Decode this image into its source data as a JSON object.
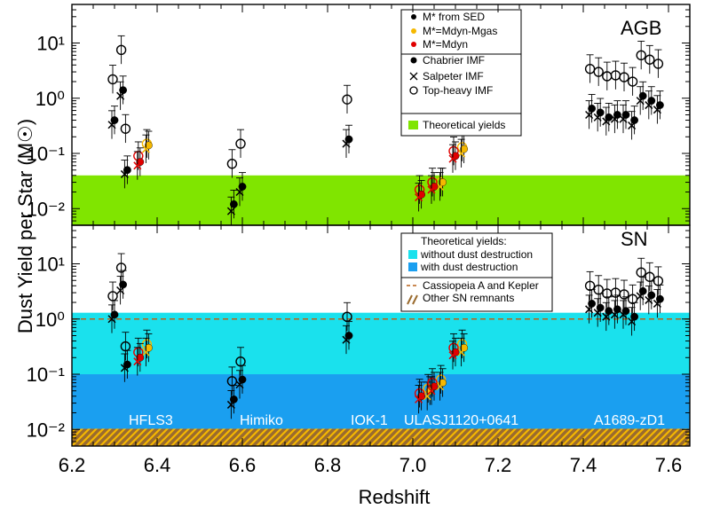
{
  "chart_data": [
    {
      "panel": "AGB",
      "type": "scatter",
      "label": "AGB",
      "ylabel": "Dust Yield per Star (M☉)",
      "yscale": "log",
      "ylim": [
        0.005,
        50
      ],
      "xlim": [
        6.2,
        7.65
      ],
      "y_tick_labels": [
        "10⁻²",
        "10⁻¹",
        "10⁰",
        "10¹"
      ],
      "legend": {
        "position": "top-right",
        "groups": [
          [
            "M* from SED",
            "M*=Mdyn-Mgas",
            "M*=Mdyn"
          ],
          [
            "Chabrier IMF",
            "Salpeter IMF",
            "Top-heavy IMF"
          ],
          [
            "Theoretical yields"
          ]
        ]
      },
      "bands": [
        {
          "name": "Theoretical yields",
          "range": [
            0.005,
            0.04
          ],
          "color": "#80e500"
        }
      ],
      "series": [
        {
          "name": "M* from SED",
          "color": "#000000",
          "x": [
            6.3,
            6.32,
            6.33,
            6.58,
            6.6,
            6.85,
            7.42,
            7.44,
            7.46,
            7.48,
            7.5,
            7.52,
            7.54,
            7.56,
            7.58
          ],
          "chabrier": [
            0.4,
            1.4,
            0.05,
            0.012,
            0.025,
            0.18,
            0.65,
            0.55,
            0.45,
            0.5,
            0.5,
            0.4,
            1.1,
            0.9,
            0.75
          ],
          "salpeter": [
            0.33,
            1.1,
            0.042,
            0.009,
            0.02,
            0.15,
            0.5,
            0.45,
            0.38,
            0.42,
            0.42,
            0.32,
            0.9,
            0.75,
            0.62
          ],
          "top_heavy": [
            2.2,
            7.5,
            0.28,
            0.065,
            0.15,
            0.95,
            3.4,
            3.0,
            2.5,
            2.6,
            2.4,
            2.0,
            6.0,
            5.0,
            4.2
          ]
        },
        {
          "name": "M*=Mdyn-Mgas",
          "color": "#f5b800",
          "x": [
            6.38,
            7.07,
            7.12
          ],
          "chabrier": [
            0.14,
            0.03,
            0.12
          ],
          "salpeter": [
            0.12,
            0.025,
            0.1
          ],
          "top_heavy": [
            0.15,
            0.03,
            0.13
          ]
        },
        {
          "name": "M*=Mdyn",
          "color": "#e00000",
          "x": [
            6.36,
            7.02,
            7.05,
            7.1
          ],
          "chabrier": [
            0.07,
            0.018,
            0.025,
            0.09
          ],
          "salpeter": [
            0.06,
            0.016,
            0.022,
            0.08
          ],
          "top_heavy": [
            0.09,
            0.022,
            0.03,
            0.11
          ]
        }
      ]
    },
    {
      "panel": "SN",
      "type": "scatter",
      "label": "SN",
      "xlabel": "Redshift",
      "yscale": "log",
      "ylim": [
        0.005,
        50
      ],
      "xlim": [
        6.2,
        7.65
      ],
      "x_tick_labels": [
        "6.2",
        "6.4",
        "6.6",
        "6.8",
        "7.0",
        "7.2",
        "7.4",
        "7.6"
      ],
      "y_tick_labels": [
        "10⁻²",
        "10⁻¹",
        "10⁰",
        "10¹"
      ],
      "legend": {
        "position": "top-right",
        "title": "Theoretical yields:",
        "items": [
          "without dust destruction",
          "with dust destruction",
          "Cassiopeia A and Kepler",
          "Other SN remnants"
        ]
      },
      "bands": [
        {
          "name": "without dust destruction",
          "range": [
            0.1,
            1.3
          ],
          "color": "#1ae1ed"
        },
        {
          "name": "with dust destruction",
          "range": [
            0.0103,
            0.1
          ],
          "color": "#1a9ff0"
        },
        {
          "name": "Other SN remnants",
          "range": [
            0.005,
            0.0103
          ],
          "color": "#9a6b2e",
          "hatched": true
        }
      ],
      "reference_line": {
        "name": "Cassiopeia A and Kepler",
        "y": 1.0,
        "color": "#b8621a",
        "style": "dashed"
      },
      "galaxy_labels": [
        {
          "text": "HFLS3",
          "x": 6.32
        },
        {
          "text": "Himiko",
          "x": 6.595
        },
        {
          "text": "IOK-1",
          "x": 6.85
        },
        {
          "text": "ULASJ1120+0641",
          "x": 7.085
        },
        {
          "text": "A1689-zD1",
          "x": 7.5
        }
      ],
      "series": [
        {
          "name": "M* from SED",
          "color": "#000000",
          "x": [
            6.3,
            6.32,
            6.33,
            6.58,
            6.6,
            6.85,
            7.42,
            7.44,
            7.46,
            7.48,
            7.5,
            7.52,
            7.54,
            7.56,
            7.58
          ],
          "chabrier": [
            1.2,
            4.2,
            0.15,
            0.035,
            0.08,
            0.5,
            1.9,
            1.6,
            1.4,
            1.5,
            1.4,
            1.1,
            3.2,
            2.7,
            2.3
          ],
          "salpeter": [
            1.0,
            3.3,
            0.13,
            0.028,
            0.065,
            0.42,
            1.5,
            1.3,
            1.1,
            1.2,
            1.2,
            0.9,
            2.6,
            2.2,
            1.9
          ],
          "top_heavy": [
            2.6,
            8.5,
            0.32,
            0.075,
            0.17,
            1.1,
            4.0,
            3.4,
            2.9,
            3.0,
            2.8,
            2.3,
            7.0,
            5.8,
            4.9
          ]
        },
        {
          "name": "M*=Mdyn-Mgas",
          "color": "#f5b800",
          "x": [
            6.38,
            7.04,
            7.07,
            7.12
          ],
          "chabrier": [
            0.3,
            0.05,
            0.07,
            0.3
          ],
          "salpeter": [
            0.25,
            0.04,
            0.06,
            0.25
          ],
          "top_heavy": [
            0.35,
            0.055,
            0.08,
            0.35
          ]
        },
        {
          "name": "M*=Mdyn",
          "color": "#e00000",
          "x": [
            6.36,
            7.02,
            7.05,
            7.1
          ],
          "chabrier": [
            0.2,
            0.04,
            0.06,
            0.25
          ],
          "salpeter": [
            0.17,
            0.035,
            0.05,
            0.22
          ],
          "top_heavy": [
            0.25,
            0.045,
            0.07,
            0.3
          ]
        }
      ]
    }
  ]
}
